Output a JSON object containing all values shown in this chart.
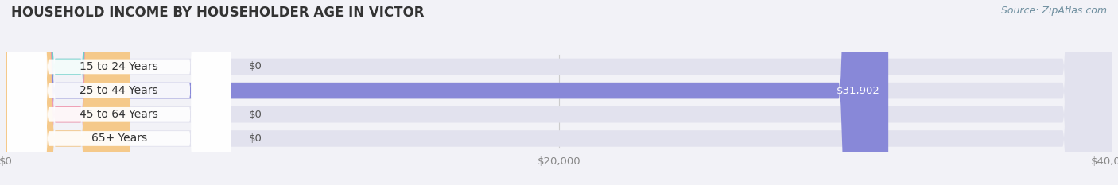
{
  "title": "HOUSEHOLD INCOME BY HOUSEHOLDER AGE IN VICTOR",
  "source": "Source: ZipAtlas.com",
  "categories": [
    "15 to 24 Years",
    "25 to 44 Years",
    "45 to 64 Years",
    "65+ Years"
  ],
  "values": [
    0,
    31902,
    0,
    0
  ],
  "bar_colors": [
    "#6ecfca",
    "#8888d8",
    "#f09ab0",
    "#f5c98a"
  ],
  "xlim": [
    0,
    40000
  ],
  "xticks": [
    0,
    20000,
    40000
  ],
  "xtick_labels": [
    "$0",
    "$20,000",
    "$40,000"
  ],
  "background_color": "#f2f2f7",
  "bar_bg_color": "#e2e2ee",
  "bar_bg_color2": "#eaeaf2",
  "title_fontsize": 12,
  "axis_fontsize": 9.5,
  "value_label_fontsize": 9.5,
  "cat_label_fontsize": 10
}
